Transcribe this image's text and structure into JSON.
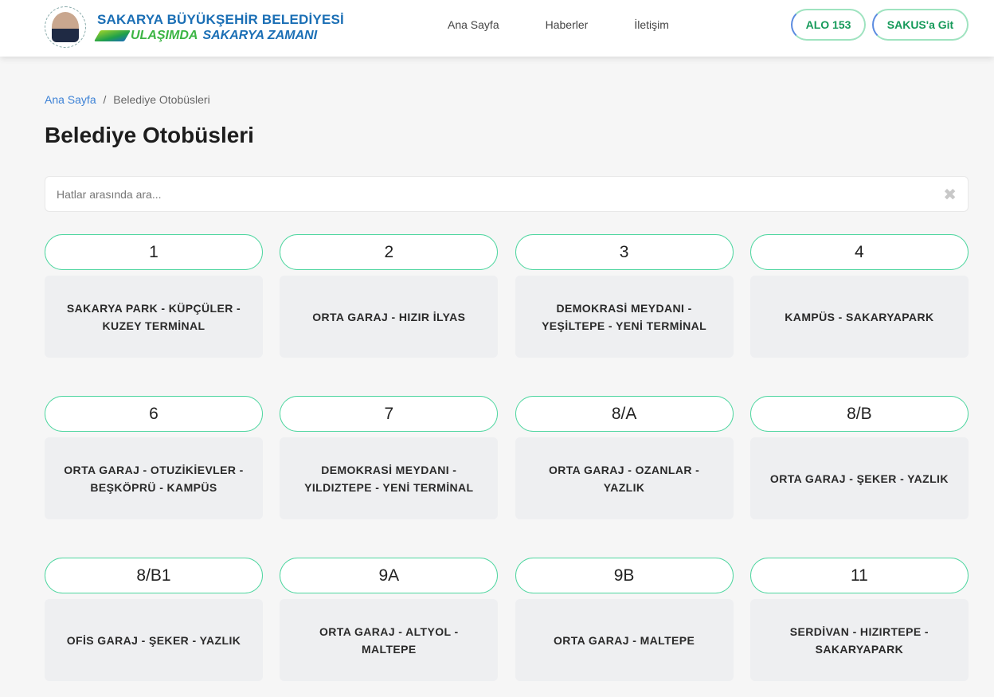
{
  "header": {
    "brand_line1": "SAKARYA BÜYÜKŞEHİR BELEDİYESİ",
    "brand_line2a": "ULAŞIMDA",
    "brand_line2b": "SAKARYA ZAMANI",
    "seal_text": "SAKARYA BÜYÜKŞEHİR BELEDİYESİ",
    "nav": [
      "Ana Sayfa",
      "Haberler",
      "İletişim"
    ],
    "alo_label": "ALO 153",
    "sakus_label": "SAKUS'a Git"
  },
  "breadcrumb": {
    "home": "Ana Sayfa",
    "separator": "/",
    "current": "Belediye Otobüsleri"
  },
  "page_title": "Belediye Otobüsleri",
  "search": {
    "placeholder": "Hatlar arasında ara...",
    "value": "",
    "clear_icon": "close-icon"
  },
  "lines": [
    {
      "code": "1",
      "route": "SAKARYA PARK - KÜPÇÜLER - KUZEY TERMİNAL"
    },
    {
      "code": "2",
      "route": "ORTA GARAJ - HIZIR İLYAS"
    },
    {
      "code": "3",
      "route": "DEMOKRASİ MEYDANI - YEŞİLTEPE - YENİ TERMİNAL"
    },
    {
      "code": "4",
      "route": "KAMPÜS - SAKARYAPARK"
    },
    {
      "code": "6",
      "route": "ORTA GARAJ - OTUZİKİEVLER - BEŞKÖPRÜ - KAMPÜS"
    },
    {
      "code": "7",
      "route": "DEMOKRASİ MEYDANI - YILDIZTEPE - YENİ TERMİNAL"
    },
    {
      "code": "8/A",
      "route": "ORTA GARAJ - OZANLAR - YAZLIK"
    },
    {
      "code": "8/B",
      "route": "ORTA GARAJ - ŞEKER - YAZLIK"
    },
    {
      "code": "8/B1",
      "route": "OFİS GARAJ - ŞEKER - YAZLIK"
    },
    {
      "code": "9A",
      "route": "ORTA GARAJ - ALTYOL - MALTEPE"
    },
    {
      "code": "9B",
      "route": "ORTA GARAJ - MALTEPE"
    },
    {
      "code": "11",
      "route": "SERDİVAN - HIZIRTEPE - SAKARYAPARK"
    }
  ],
  "colors": {
    "accent_green": "#4fd6a0",
    "brand_blue": "#1b6fb5",
    "link_blue": "#3d82d6"
  }
}
